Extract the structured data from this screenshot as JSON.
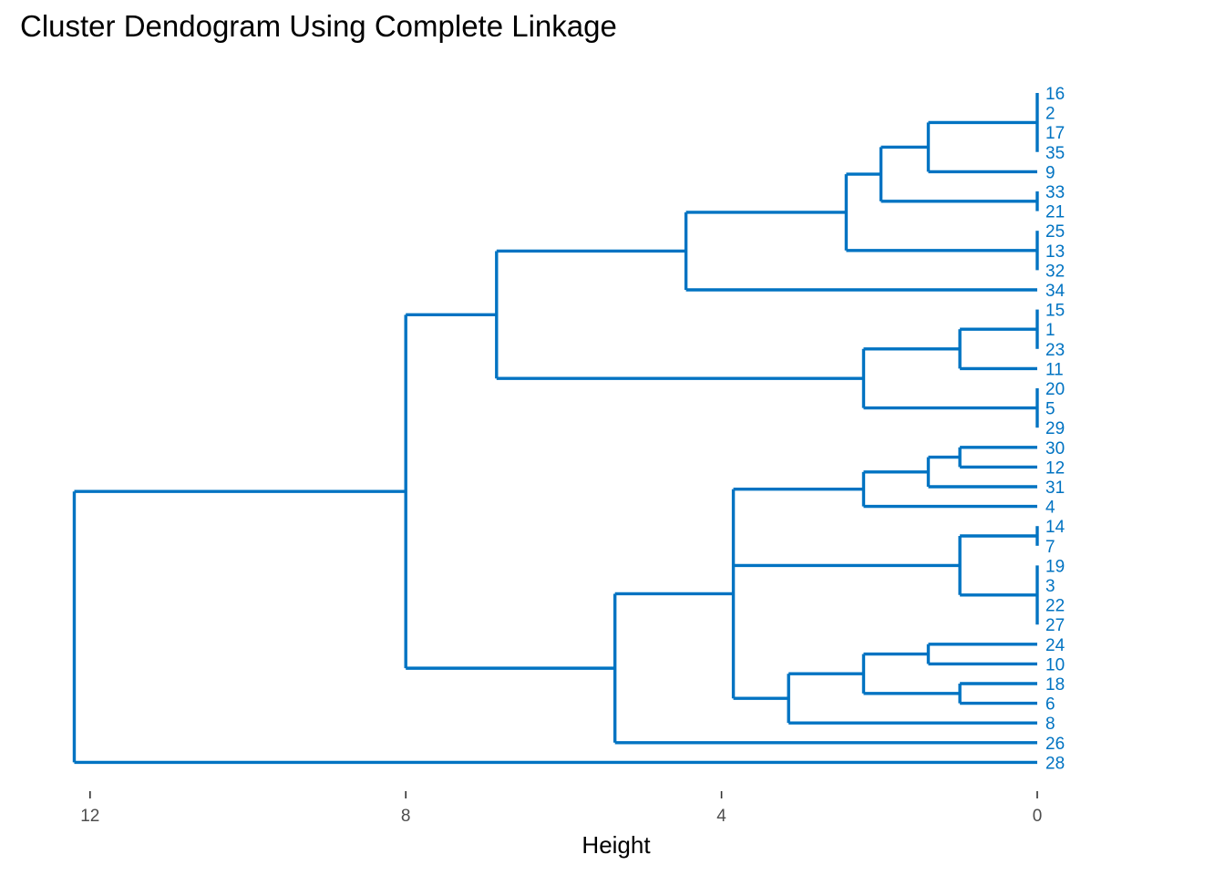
{
  "chart_data": {
    "type": "dendrogram",
    "title": "Cluster Dendogram Using Complete Linkage",
    "xlabel": "Height",
    "ylabel": "",
    "x_ticks": [
      12,
      8,
      4,
      0
    ],
    "xlim": [
      12.4,
      0
    ],
    "orientation": "horizontal",
    "grid": false,
    "colors": {
      "branch": "#0073C2",
      "label": "#0073C2"
    },
    "leaves": [
      "16",
      "2",
      "17",
      "35",
      "9",
      "33",
      "21",
      "25",
      "13",
      "32",
      "34",
      "15",
      "1",
      "23",
      "11",
      "20",
      "5",
      "29",
      "30",
      "12",
      "31",
      "4",
      "14",
      "7",
      "19",
      "3",
      "22",
      "27",
      "24",
      "10",
      "18",
      "6",
      "8",
      "26",
      "28"
    ],
    "tree": {
      "h": 12.2,
      "c": [
        {
          "h": 8.0,
          "c": [
            {
              "h": 6.85,
              "c": [
                {
                  "h": 4.45,
                  "c": [
                    {
                      "h": 2.42,
                      "c": [
                        {
                          "h": 1.98,
                          "c": [
                            {
                              "h": 1.38,
                              "c": [
                                {
                                  "h": 0,
                                  "c": [
                                    "16",
                                    "2",
                                    "17",
                                    "35"
                                  ]
                                },
                                "9"
                              ]
                            },
                            {
                              "h": 0,
                              "c": [
                                "33",
                                "21"
                              ]
                            }
                          ]
                        },
                        {
                          "h": 0,
                          "c": [
                            "25",
                            "13",
                            "32"
                          ]
                        }
                      ]
                    },
                    "34"
                  ]
                },
                {
                  "h": 2.2,
                  "c": [
                    {
                      "h": 0.98,
                      "c": [
                        {
                          "h": 0,
                          "c": [
                            "15",
                            "1",
                            "23"
                          ]
                        },
                        "11"
                      ]
                    },
                    {
                      "h": 0,
                      "c": [
                        "20",
                        "5",
                        "29"
                      ]
                    }
                  ]
                }
              ]
            },
            {
              "h": 5.35,
              "c": [
                {
                  "h": 3.85,
                  "c": [
                    {
                      "h": 2.2,
                      "c": [
                        {
                          "h": 1.38,
                          "c": [
                            {
                              "h": 0.98,
                              "c": [
                                "30",
                                "12"
                              ]
                            },
                            "31"
                          ]
                        },
                        "4"
                      ]
                    },
                    {
                      "h": 0.98,
                      "c": [
                        {
                          "h": 0,
                          "c": [
                            "14",
                            "7"
                          ]
                        },
                        {
                          "h": 0,
                          "c": [
                            "19",
                            "3",
                            "22",
                            "27"
                          ]
                        }
                      ]
                    },
                    {
                      "h": 3.15,
                      "c": [
                        {
                          "h": 2.2,
                          "c": [
                            {
                              "h": 1.38,
                              "c": [
                                "24",
                                "10"
                              ]
                            },
                            {
                              "h": 0.98,
                              "c": [
                                "18",
                                "6"
                              ]
                            }
                          ]
                        },
                        "8"
                      ]
                    }
                  ]
                },
                "26"
              ]
            }
          ]
        },
        "28"
      ]
    }
  }
}
